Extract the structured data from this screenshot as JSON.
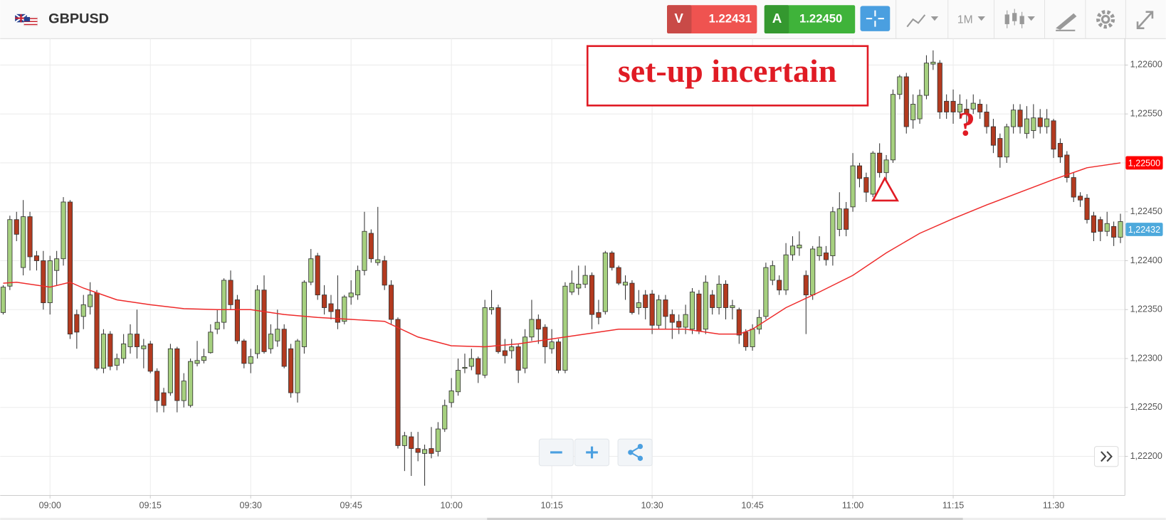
{
  "header": {
    "symbol": "GBPUSD",
    "sell": {
      "label": "V",
      "price": "1.22431"
    },
    "buy": {
      "label": "A",
      "price": "1.22450"
    },
    "timeframe": "1M"
  },
  "chart_data": {
    "type": "candlestick",
    "x": [
      "08:53",
      "08:54",
      "08:55",
      "08:56",
      "08:57",
      "08:58",
      "08:59",
      "09:00",
      "09:01",
      "09:02",
      "09:03",
      "09:04",
      "09:05",
      "09:06",
      "09:07",
      "09:08",
      "09:09",
      "09:10",
      "09:11",
      "09:12",
      "09:13",
      "09:14",
      "09:15",
      "09:16",
      "09:17",
      "09:18",
      "09:19",
      "09:20",
      "09:21",
      "09:22",
      "09:23",
      "09:24",
      "09:25",
      "09:26",
      "09:27",
      "09:28",
      "09:29",
      "09:30",
      "09:31",
      "09:32",
      "09:33",
      "09:34",
      "09:35",
      "09:36",
      "09:37",
      "09:38",
      "09:39",
      "09:40",
      "09:41",
      "09:42",
      "09:43",
      "09:44",
      "09:45",
      "09:46",
      "09:47",
      "09:48",
      "09:49",
      "09:50",
      "09:51",
      "09:52",
      "09:53",
      "09:54",
      "09:55",
      "09:56",
      "09:57",
      "09:58",
      "09:59",
      "10:00",
      "10:01",
      "10:02",
      "10:03",
      "10:04",
      "10:05",
      "10:06",
      "10:07",
      "10:08",
      "10:09",
      "10:10",
      "10:11",
      "10:12",
      "10:13",
      "10:14",
      "10:15",
      "10:16",
      "10:17",
      "10:18",
      "10:19",
      "10:20",
      "10:21",
      "10:22",
      "10:23",
      "10:24",
      "10:25",
      "10:26",
      "10:27",
      "10:28",
      "10:29",
      "10:30",
      "10:31",
      "10:32",
      "10:33",
      "10:34",
      "10:35",
      "10:36",
      "10:37",
      "10:38",
      "10:39",
      "10:40",
      "10:41",
      "10:42",
      "10:43",
      "10:44",
      "10:45",
      "10:46",
      "10:47",
      "10:48",
      "10:49",
      "10:50",
      "10:51",
      "10:52",
      "10:53",
      "10:54",
      "10:55",
      "10:56",
      "10:57",
      "10:58",
      "10:59",
      "11:00",
      "11:01",
      "11:02",
      "11:03",
      "11:04",
      "11:05",
      "11:06",
      "11:07",
      "11:08",
      "11:09",
      "11:10",
      "11:11",
      "11:12",
      "11:13",
      "11:14",
      "11:15",
      "11:16",
      "11:17",
      "11:18",
      "11:19",
      "11:20",
      "11:21",
      "11:22",
      "11:23",
      "11:24",
      "11:25",
      "11:26",
      "11:27",
      "11:28",
      "11:29",
      "11:30",
      "11:31",
      "11:32",
      "11:33",
      "11:34",
      "11:35",
      "11:36",
      "11:37",
      "11:38",
      "11:39",
      "11:40"
    ],
    "open": [
      1.22347,
      1.22374,
      1.22442,
      1.22393,
      1.22445,
      1.22405,
      1.224,
      1.22357,
      1.2239,
      1.22402,
      1.2246,
      1.22345,
      1.22343,
      1.22353,
      1.22367,
      1.2229,
      1.22325,
      1.22293,
      1.223,
      1.22312,
      1.22325,
      1.2231,
      1.22315,
      1.22287,
      1.22265,
      1.22265,
      1.2231,
      1.22257,
      1.22252,
      1.22295,
      1.22298,
      1.22306,
      1.2233,
      1.22337,
      1.2238,
      1.2236,
      1.22318,
      1.22295,
      1.22305,
      1.2237,
      1.2231,
      1.22318,
      1.2233,
      1.2231,
      1.22265,
      1.22312,
      1.22378,
      1.22405,
      1.22365,
      1.22356,
      1.2235,
      1.22338,
      1.22363,
      1.22365,
      1.2239,
      1.22428,
      1.22398,
      1.224,
      1.22375,
      1.2234,
      1.22211,
      1.2222,
      1.22208,
      1.22203,
      1.22208,
      1.22205,
      1.22228,
      1.22255,
      1.22266,
      1.2229,
      1.22292,
      1.223,
      1.22283,
      1.2235,
      1.22352,
      1.22308,
      1.22308,
      1.22312,
      1.2229,
      1.22322,
      1.2234,
      1.22332,
      1.2231,
      1.22317,
      1.22288,
      1.22368,
      1.22372,
      1.22376,
      1.22385,
      1.22347,
      1.22348,
      1.22408,
      1.22393,
      1.22375,
      1.22377,
      1.22352,
      1.22365,
      1.22366,
      1.22334,
      1.2236,
      1.22345,
      1.22338,
      1.22332,
      1.2233,
      1.22366,
      1.2233,
      1.22365,
      1.22352,
      1.22376,
      1.22352,
      1.2235,
      1.22327,
      1.22312,
      1.2233,
      1.22343,
      1.2238,
      1.2238,
      1.2237,
      1.22406,
      1.22413,
      1.22385,
      1.22365,
      1.22405,
      1.22408,
      1.22405,
      1.22432,
      1.22453,
      1.22455,
      1.22497,
      1.22485,
      1.22468,
      1.2251,
      1.2249,
      1.22503,
      1.2257,
      1.22588,
      1.22544,
      1.22545,
      1.22569,
      1.22601,
      1.22602,
      1.22563,
      1.22563,
      1.22552,
      1.22555,
      1.22555,
      1.2256,
      1.22552,
      1.22537,
      1.22525,
      1.22506,
      1.22537,
      1.22554,
      1.2253,
      1.22533,
      1.22546,
      1.22537,
      1.22543,
      1.2252,
      1.22508,
      1.22485,
      1.22466,
      1.22464,
      1.22446,
      1.22442,
      1.2243,
      1.22435,
      1.22424
    ],
    "high": [
      1.22375,
      1.22446,
      1.2245,
      1.22462,
      1.2245,
      1.2241,
      1.2241,
      1.22405,
      1.2241,
      1.22465,
      1.22462,
      1.2235,
      1.22365,
      1.22378,
      1.2237,
      1.2233,
      1.22328,
      1.22305,
      1.22325,
      1.22335,
      1.2235,
      1.2232,
      1.22318,
      1.2229,
      1.2227,
      1.22315,
      1.22312,
      1.22285,
      1.223,
      1.22318,
      1.2231,
      1.22335,
      1.2235,
      1.22382,
      1.2239,
      1.22365,
      1.2232,
      1.2231,
      1.22375,
      1.22385,
      1.22335,
      1.2235,
      1.22335,
      1.22315,
      1.2232,
      1.2238,
      1.22412,
      1.22408,
      1.22375,
      1.22365,
      1.22385,
      1.22365,
      1.2238,
      1.22395,
      1.2245,
      1.22432,
      1.22455,
      1.22405,
      1.2238,
      1.22342,
      1.22225,
      1.22225,
      1.22225,
      1.22212,
      1.2223,
      1.22235,
      1.22258,
      1.2228,
      1.223,
      1.22305,
      1.2231,
      1.22302,
      1.2236,
      1.2237,
      1.22355,
      1.2232,
      1.2232,
      1.22315,
      1.2233,
      1.2236,
      1.22345,
      1.22335,
      1.2233,
      1.2232,
      1.22378,
      1.2239,
      1.22395,
      1.22395,
      1.22388,
      1.2236,
      1.2241,
      1.2241,
      1.22395,
      1.22385,
      1.2238,
      1.2237,
      1.2237,
      1.2237,
      1.22365,
      1.22365,
      1.2235,
      1.22345,
      1.22355,
      1.22372,
      1.2237,
      1.22385,
      1.2237,
      1.22385,
      1.2238,
      1.2236,
      1.22352,
      1.2233,
      1.22335,
      1.2235,
      1.22398,
      1.224,
      1.22385,
      1.22418,
      1.22425,
      1.2243,
      1.2239,
      1.22415,
      1.22425,
      1.22415,
      1.22455,
      1.2247,
      1.2246,
      1.2251,
      1.225,
      1.2249,
      1.22512,
      1.2252,
      1.22508,
      1.22575,
      1.2259,
      1.22592,
      1.2257,
      1.22575,
      1.2261,
      1.22615,
      1.22605,
      1.2257,
      1.22575,
      1.2257,
      1.22565,
      1.2257,
      1.22565,
      1.2256,
      1.22545,
      1.2253,
      1.2254,
      1.2256,
      1.2256,
      1.22558,
      1.2256,
      1.22555,
      1.22555,
      1.22545,
      1.22525,
      1.22512,
      1.2249,
      1.2247,
      1.22468,
      1.2245,
      1.22445,
      1.2245,
      1.2244,
      1.22448
    ],
    "low": [
      1.22345,
      1.2237,
      1.2242,
      1.22385,
      1.2239,
      1.2239,
      1.2235,
      1.22345,
      1.22375,
      1.22395,
      1.2232,
      1.2231,
      1.2233,
      1.22345,
      1.22288,
      1.22285,
      1.22288,
      1.22288,
      1.22295,
      1.22305,
      1.223,
      1.2229,
      1.22285,
      1.22245,
      1.22245,
      1.22262,
      1.22245,
      1.2225,
      1.2225,
      1.22292,
      1.22295,
      1.22305,
      1.22325,
      1.2233,
      1.2235,
      1.22315,
      1.2229,
      1.22285,
      1.223,
      1.22305,
      1.22305,
      1.22312,
      1.2229,
      1.2226,
      1.22255,
      1.22305,
      1.22375,
      1.2236,
      1.22345,
      1.2234,
      1.2233,
      1.22335,
      1.22355,
      1.2236,
      1.22385,
      1.22398,
      1.22395,
      1.2237,
      1.22335,
      1.22208,
      1.22185,
      1.2218,
      1.22195,
      1.2217,
      1.22198,
      1.222,
      1.22225,
      1.2225,
      1.22262,
      1.22285,
      1.22288,
      1.22275,
      1.2228,
      1.22345,
      1.22305,
      1.22295,
      1.223,
      1.22275,
      1.22285,
      1.22318,
      1.22315,
      1.22295,
      1.22305,
      1.22285,
      1.22285,
      1.22365,
      1.22365,
      1.22372,
      1.2233,
      1.22335,
      1.22345,
      1.2239,
      1.22375,
      1.2236,
      1.22345,
      1.22345,
      1.2234,
      1.22325,
      1.2233,
      1.2233,
      1.2232,
      1.22325,
      1.22325,
      1.22325,
      1.22325,
      1.22325,
      1.22345,
      1.22345,
      1.2234,
      1.2234,
      1.22315,
      1.22308,
      1.22308,
      1.22325,
      1.2234,
      1.22375,
      1.22365,
      1.22365,
      1.224,
      1.22405,
      1.22325,
      1.2236,
      1.224,
      1.22395,
      1.22395,
      1.22425,
      1.22425,
      1.2245,
      1.22475,
      1.2246,
      1.22465,
      1.22485,
      1.2248,
      1.225,
      1.22565,
      1.2253,
      1.22535,
      1.2254,
      1.22565,
      1.22595,
      1.22545,
      1.22545,
      1.2254,
      1.22545,
      1.2254,
      1.2255,
      1.22545,
      1.2253,
      1.2251,
      1.22495,
      1.225,
      1.2253,
      1.2253,
      1.22525,
      1.22525,
      1.2253,
      1.2253,
      1.22505,
      1.225,
      1.2248,
      1.2246,
      1.22455,
      1.22438,
      1.2242,
      1.2242,
      1.22425,
      1.22415,
      1.22418
    ],
    "close": [
      1.22373,
      1.22442,
      1.22427,
      1.22445,
      1.22404,
      1.224,
      1.22357,
      1.224,
      1.22402,
      1.2246,
      1.22325,
      1.22327,
      1.22355,
      1.22365,
      1.2229,
      1.22325,
      1.22292,
      1.223,
      1.22315,
      1.22325,
      1.22312,
      1.22313,
      1.22287,
      1.22257,
      1.22252,
      1.2231,
      1.22257,
      1.22277,
      1.22297,
      1.22298,
      1.22302,
      1.22327,
      1.22337,
      1.2238,
      1.22355,
      1.22318,
      1.22295,
      1.22302,
      1.2237,
      1.22307,
      1.22325,
      1.2233,
      1.22292,
      1.22265,
      1.22318,
      1.22378,
      1.22402,
      1.22365,
      1.22352,
      1.22348,
      1.22337,
      1.22363,
      1.22367,
      1.2239,
      1.2243,
      1.22402,
      1.22401,
      1.22375,
      1.2234,
      1.22211,
      1.22221,
      1.22208,
      1.22204,
      1.22207,
      1.22203,
      1.22228,
      1.22252,
      1.22267,
      1.22288,
      1.22291,
      1.223,
      1.22284,
      1.22352,
      1.22352,
      1.22307,
      1.22303,
      1.22312,
      1.22288,
      1.22322,
      1.2234,
      1.2233,
      1.22312,
      1.22317,
      1.22288,
      1.22374,
      1.22377,
      1.22376,
      1.22385,
      1.22345,
      1.22342,
      1.22408,
      1.22393,
      1.22377,
      1.22378,
      1.22347,
      1.22357,
      1.22352,
      1.22334,
      1.2236,
      1.22343,
      1.22337,
      1.22332,
      1.22345,
      1.22368,
      1.22328,
      1.22378,
      1.22352,
      1.22376,
      1.22352,
      1.22354,
      1.22324,
      1.22312,
      1.2233,
      1.22342,
      1.22393,
      1.22395,
      1.2237,
      1.22406,
      1.22415,
      1.22416,
      1.22365,
      1.22412,
      1.22414,
      1.22401,
      1.2245,
      1.22453,
      1.22432,
      1.22497,
      1.22484,
      1.2247,
      1.2251,
      1.2249,
      1.22503,
      1.2257,
      1.22588,
      1.22537,
      1.2256,
      1.22569,
      1.22602,
      1.22603,
      1.22552,
      1.22552,
      1.22552,
      1.2256,
      1.2255,
      1.22561,
      1.22552,
      1.22537,
      1.22518,
      1.22506,
      1.22537,
      1.22554,
      1.22537,
      1.22545,
      1.22546,
      1.22537,
      1.22545,
      1.22514,
      1.22506,
      1.22485,
      1.22465,
      1.22462,
      1.22442,
      1.22429,
      1.2243,
      1.22438,
      1.22424,
      1.2244
    ],
    "up_color": "#a6d07f",
    "down_color": "#b33a1f",
    "indicator": {
      "color": "#ee2a2a",
      "x": [
        "08:53",
        "08:55",
        "09:00",
        "09:03",
        "09:05",
        "09:10",
        "09:15",
        "09:20",
        "09:25",
        "09:30",
        "09:35",
        "09:40",
        "09:45",
        "09:50",
        "09:55",
        "10:00",
        "10:05",
        "10:10",
        "10:15",
        "10:20",
        "10:25",
        "10:30",
        "10:35",
        "10:40",
        "10:43",
        "10:45",
        "10:50",
        "10:55",
        "11:00",
        "11:05",
        "11:10",
        "11:15",
        "11:20",
        "11:25",
        "11:30",
        "11:35",
        "11:40"
      ],
      "values": [
        1.22377,
        1.22378,
        1.22373,
        1.22378,
        1.22372,
        1.2236,
        1.22355,
        1.22351,
        1.2235,
        1.2235,
        1.22345,
        1.22342,
        1.2234,
        1.22338,
        1.22322,
        1.22313,
        1.22312,
        1.22315,
        1.2232,
        1.22325,
        1.2233,
        1.2233,
        1.2233,
        1.22325,
        1.22325,
        1.2233,
        1.22352,
        1.22368,
        1.22385,
        1.22408,
        1.22428,
        1.22443,
        1.22457,
        1.2247,
        1.22483,
        1.22495,
        1.225
      ]
    },
    "ylim": [
      1.2216,
      1.22627
    ],
    "yticks": [
      {
        "value": 1.222,
        "label": "1,22200"
      },
      {
        "value": 1.2225,
        "label": "1,22250"
      },
      {
        "value": 1.223,
        "label": "1,22300"
      },
      {
        "value": 1.2235,
        "label": "1,22350"
      },
      {
        "value": 1.224,
        "label": "1,22400"
      },
      {
        "value": 1.2245,
        "label": "1,22450"
      },
      {
        "value": 1.225,
        "label": "1,22500"
      },
      {
        "value": 1.2255,
        "label": "1,22550"
      },
      {
        "value": 1.226,
        "label": "1,22600"
      }
    ],
    "xticks": [
      "09:00",
      "09:15",
      "09:30",
      "09:45",
      "10:00",
      "10:15",
      "10:30",
      "10:45",
      "11:00",
      "11:15",
      "11:30"
    ],
    "grid": true,
    "price_tags": [
      {
        "value": 1.225,
        "label": "1,22500",
        "color": "#ff0000"
      },
      {
        "value": 1.22432,
        "label": "1,22432",
        "color": "#4da9dc"
      }
    ],
    "annotation": "set-up incertain",
    "annotation_mark": "?"
  }
}
